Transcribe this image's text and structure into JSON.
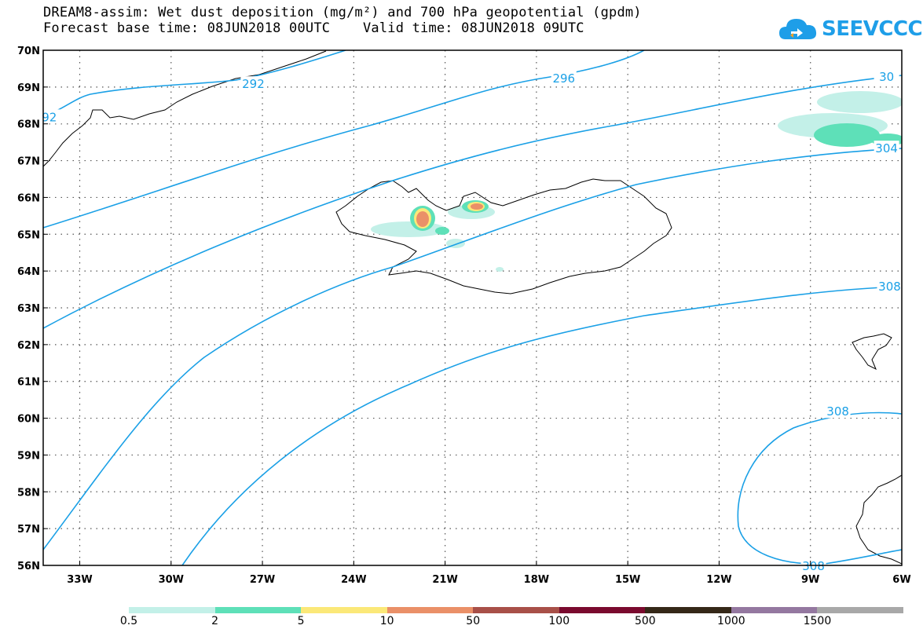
{
  "title": {
    "line1": "DREAM8-assim: Wet dust deposition (mg/m²) and 700 hPa geopotential (gpdm)",
    "line2": "Forecast base time: 08JUN2018 00UTC    Valid time: 08JUN2018 09UTC"
  },
  "logo": {
    "text": "SEEVCCC"
  },
  "map": {
    "lon_range": [
      -34.2,
      -6.0
    ],
    "lat_range": [
      56.0,
      70.0
    ],
    "lon_ticks": [
      {
        "value": -33,
        "label": "33W"
      },
      {
        "value": -30,
        "label": "30W"
      },
      {
        "value": -27,
        "label": "27W"
      },
      {
        "value": -24,
        "label": "24W"
      },
      {
        "value": -21,
        "label": "21W"
      },
      {
        "value": -18,
        "label": "18W"
      },
      {
        "value": -15,
        "label": "15W"
      },
      {
        "value": -12,
        "label": "12W"
      },
      {
        "value": -9,
        "label": "9W"
      },
      {
        "value": -6,
        "label": "6W"
      }
    ],
    "lat_ticks": [
      {
        "value": 70,
        "label": "70N"
      },
      {
        "value": 69,
        "label": "69N"
      },
      {
        "value": 68,
        "label": "68N"
      },
      {
        "value": 67,
        "label": "67N"
      },
      {
        "value": 66,
        "label": "66N"
      },
      {
        "value": 65,
        "label": "65N"
      },
      {
        "value": 64,
        "label": "64N"
      },
      {
        "value": 63,
        "label": "63N"
      },
      {
        "value": 62,
        "label": "62N"
      },
      {
        "value": 61,
        "label": "61N"
      },
      {
        "value": 60,
        "label": "60N"
      },
      {
        "value": 59,
        "label": "59N"
      },
      {
        "value": 58,
        "label": "58N"
      },
      {
        "value": 57,
        "label": "57N"
      },
      {
        "value": 56,
        "label": "56N"
      }
    ],
    "contour_color": "#1aa0e6",
    "contour_labels": [
      {
        "text": "292",
        "lon": -27.3,
        "lat": 69.1
      },
      {
        "text": "92",
        "lon": -34.0,
        "lat": 68.2
      },
      {
        "text": "296",
        "lon": -17.1,
        "lat": 69.25
      },
      {
        "text": "30",
        "lon": -6.5,
        "lat": 69.3
      },
      {
        "text": "304",
        "lon": -6.5,
        "lat": 67.35
      },
      {
        "text": "308",
        "lon": -6.4,
        "lat": 63.6
      },
      {
        "text": "308",
        "lon": -8.1,
        "lat": 60.2
      },
      {
        "text": "308",
        "lon": -8.9,
        "lat": 56.0
      }
    ]
  },
  "colorbar": {
    "labels": [
      "0.5",
      "2",
      "5",
      "10",
      "50",
      "100",
      "500",
      "1000",
      "1500"
    ],
    "colors": [
      "#c3f0e8",
      "#5ee0b8",
      "#fbe878",
      "#ea9068",
      "#a85048",
      "#7a0a2e",
      "#352818",
      "#9478a0",
      "#a8a8a8"
    ]
  }
}
